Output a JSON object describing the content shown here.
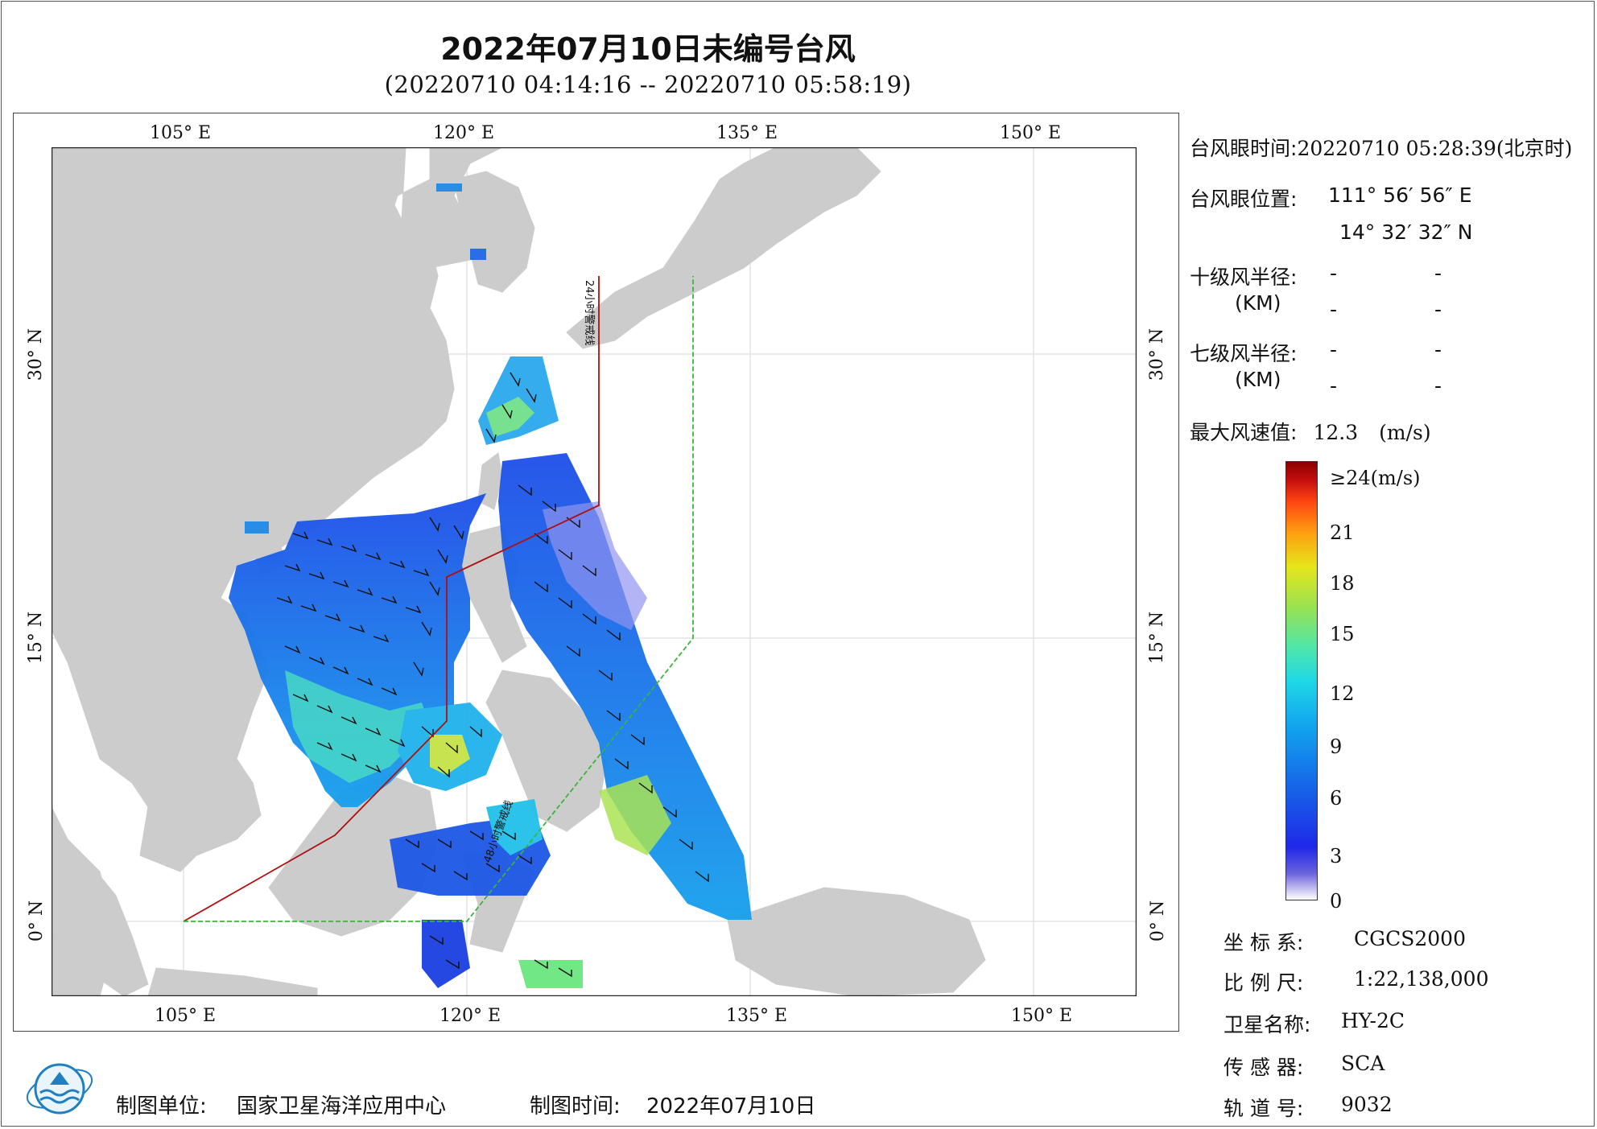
{
  "header": {
    "title": "2022年07月10日未编号台风",
    "subtitle": "(20220710 04:14:16 -- 20220710 05:58:19)"
  },
  "map": {
    "lon_labels_top": [
      "105° E",
      "120° E",
      "135° E",
      "150° E"
    ],
    "lon_labels_bottom": [
      "105° E",
      "120° E",
      "135° E",
      "150° E"
    ],
    "lat_labels": [
      "30° N",
      "15° N",
      "0° N"
    ],
    "line_24h_label": "24小时警戒线",
    "line_48h_label": "48小时警戒线",
    "colors": {
      "land": "#cccccc",
      "sea": "#ffffff",
      "line_24h": "#b01010",
      "line_48h": "#3cb43c",
      "grid": "#e3e3e3"
    }
  },
  "info": {
    "eye_time_label": "台风眼时间:",
    "eye_time_value": "20220710 05:28:39(北京时)",
    "eye_pos_label": "台风眼位置:",
    "eye_lon": "111° 56′ 56″ E",
    "eye_lat": "14° 32′ 32″ N",
    "r10_label": "十级风半径:",
    "r7_label": "七级风半径:",
    "km_unit": "(KM)",
    "dash": "-",
    "max_wind_label": "最大风速值:",
    "max_wind_value": "12.3",
    "max_wind_unit": "(m/s)"
  },
  "colorbar": {
    "labels": [
      "≥24(m/s)",
      "21",
      "18",
      "15",
      "12",
      "9",
      "6",
      "3",
      "0"
    ],
    "min": 0,
    "max": 24,
    "unit": "m/s"
  },
  "meta": {
    "crs_label": "坐 标 系:",
    "crs_value": "CGCS2000",
    "scale_label": "比 例 尺:",
    "scale_value": "1:22,138,000",
    "sat_label": "卫星名称:",
    "sat_value": "HY-2C",
    "sensor_label": "传 感 器:",
    "sensor_value": "SCA",
    "orbit_label": "轨 道 号:",
    "orbit_value": "9032"
  },
  "footer": {
    "unit_label": "制图单位:",
    "unit_value": "国家卫星海洋应用中心",
    "time_label": "制图时间:",
    "time_value": "2022年07月10日"
  }
}
